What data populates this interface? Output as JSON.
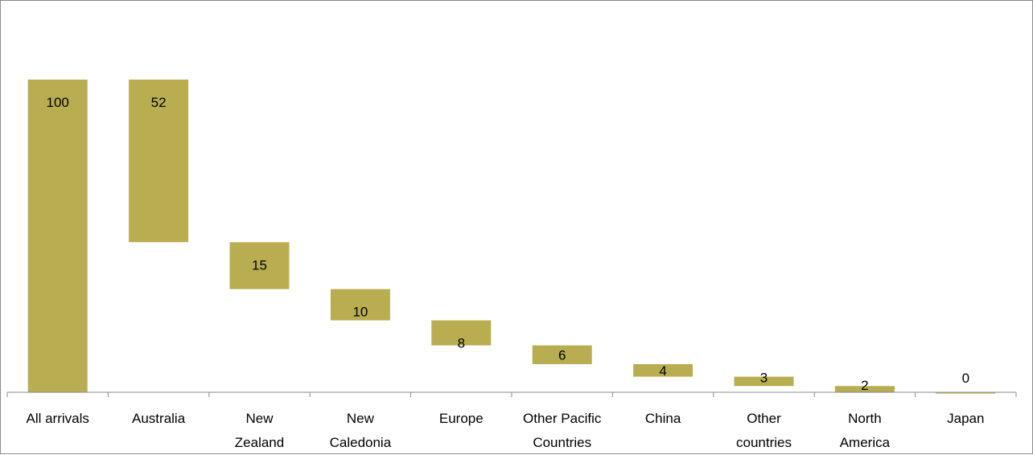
{
  "chart_data": {
    "type": "bar",
    "subtype": "waterfall",
    "title": "",
    "xlabel": "",
    "ylabel": "",
    "categories": [
      "All arrivals",
      "Australia",
      "New Zealand",
      "New Caledonia",
      "Europe",
      "Other Pacific Countries",
      "China",
      "Other countries",
      "North America",
      "Japan"
    ],
    "category_lines": [
      [
        "All arrivals"
      ],
      [
        "Australia"
      ],
      [
        "New",
        "Zealand"
      ],
      [
        "New",
        "Caledonia"
      ],
      [
        "Europe"
      ],
      [
        "Other Pacific",
        "Countries"
      ],
      [
        "China"
      ],
      [
        "Other",
        "countries"
      ],
      [
        "North",
        "America"
      ],
      [
        "Japan"
      ]
    ],
    "values": [
      100,
      52,
      15,
      10,
      8,
      6,
      4,
      3,
      2,
      0
    ],
    "data_labels": [
      "100",
      "52",
      "15",
      "10",
      "8",
      "6",
      "4",
      "3",
      "2",
      "0"
    ],
    "ylim": [
      0,
      100
    ],
    "grid": false,
    "legend": "none",
    "colors": {
      "bar": "#b9ad52",
      "axis": "#8c8c8c"
    }
  }
}
